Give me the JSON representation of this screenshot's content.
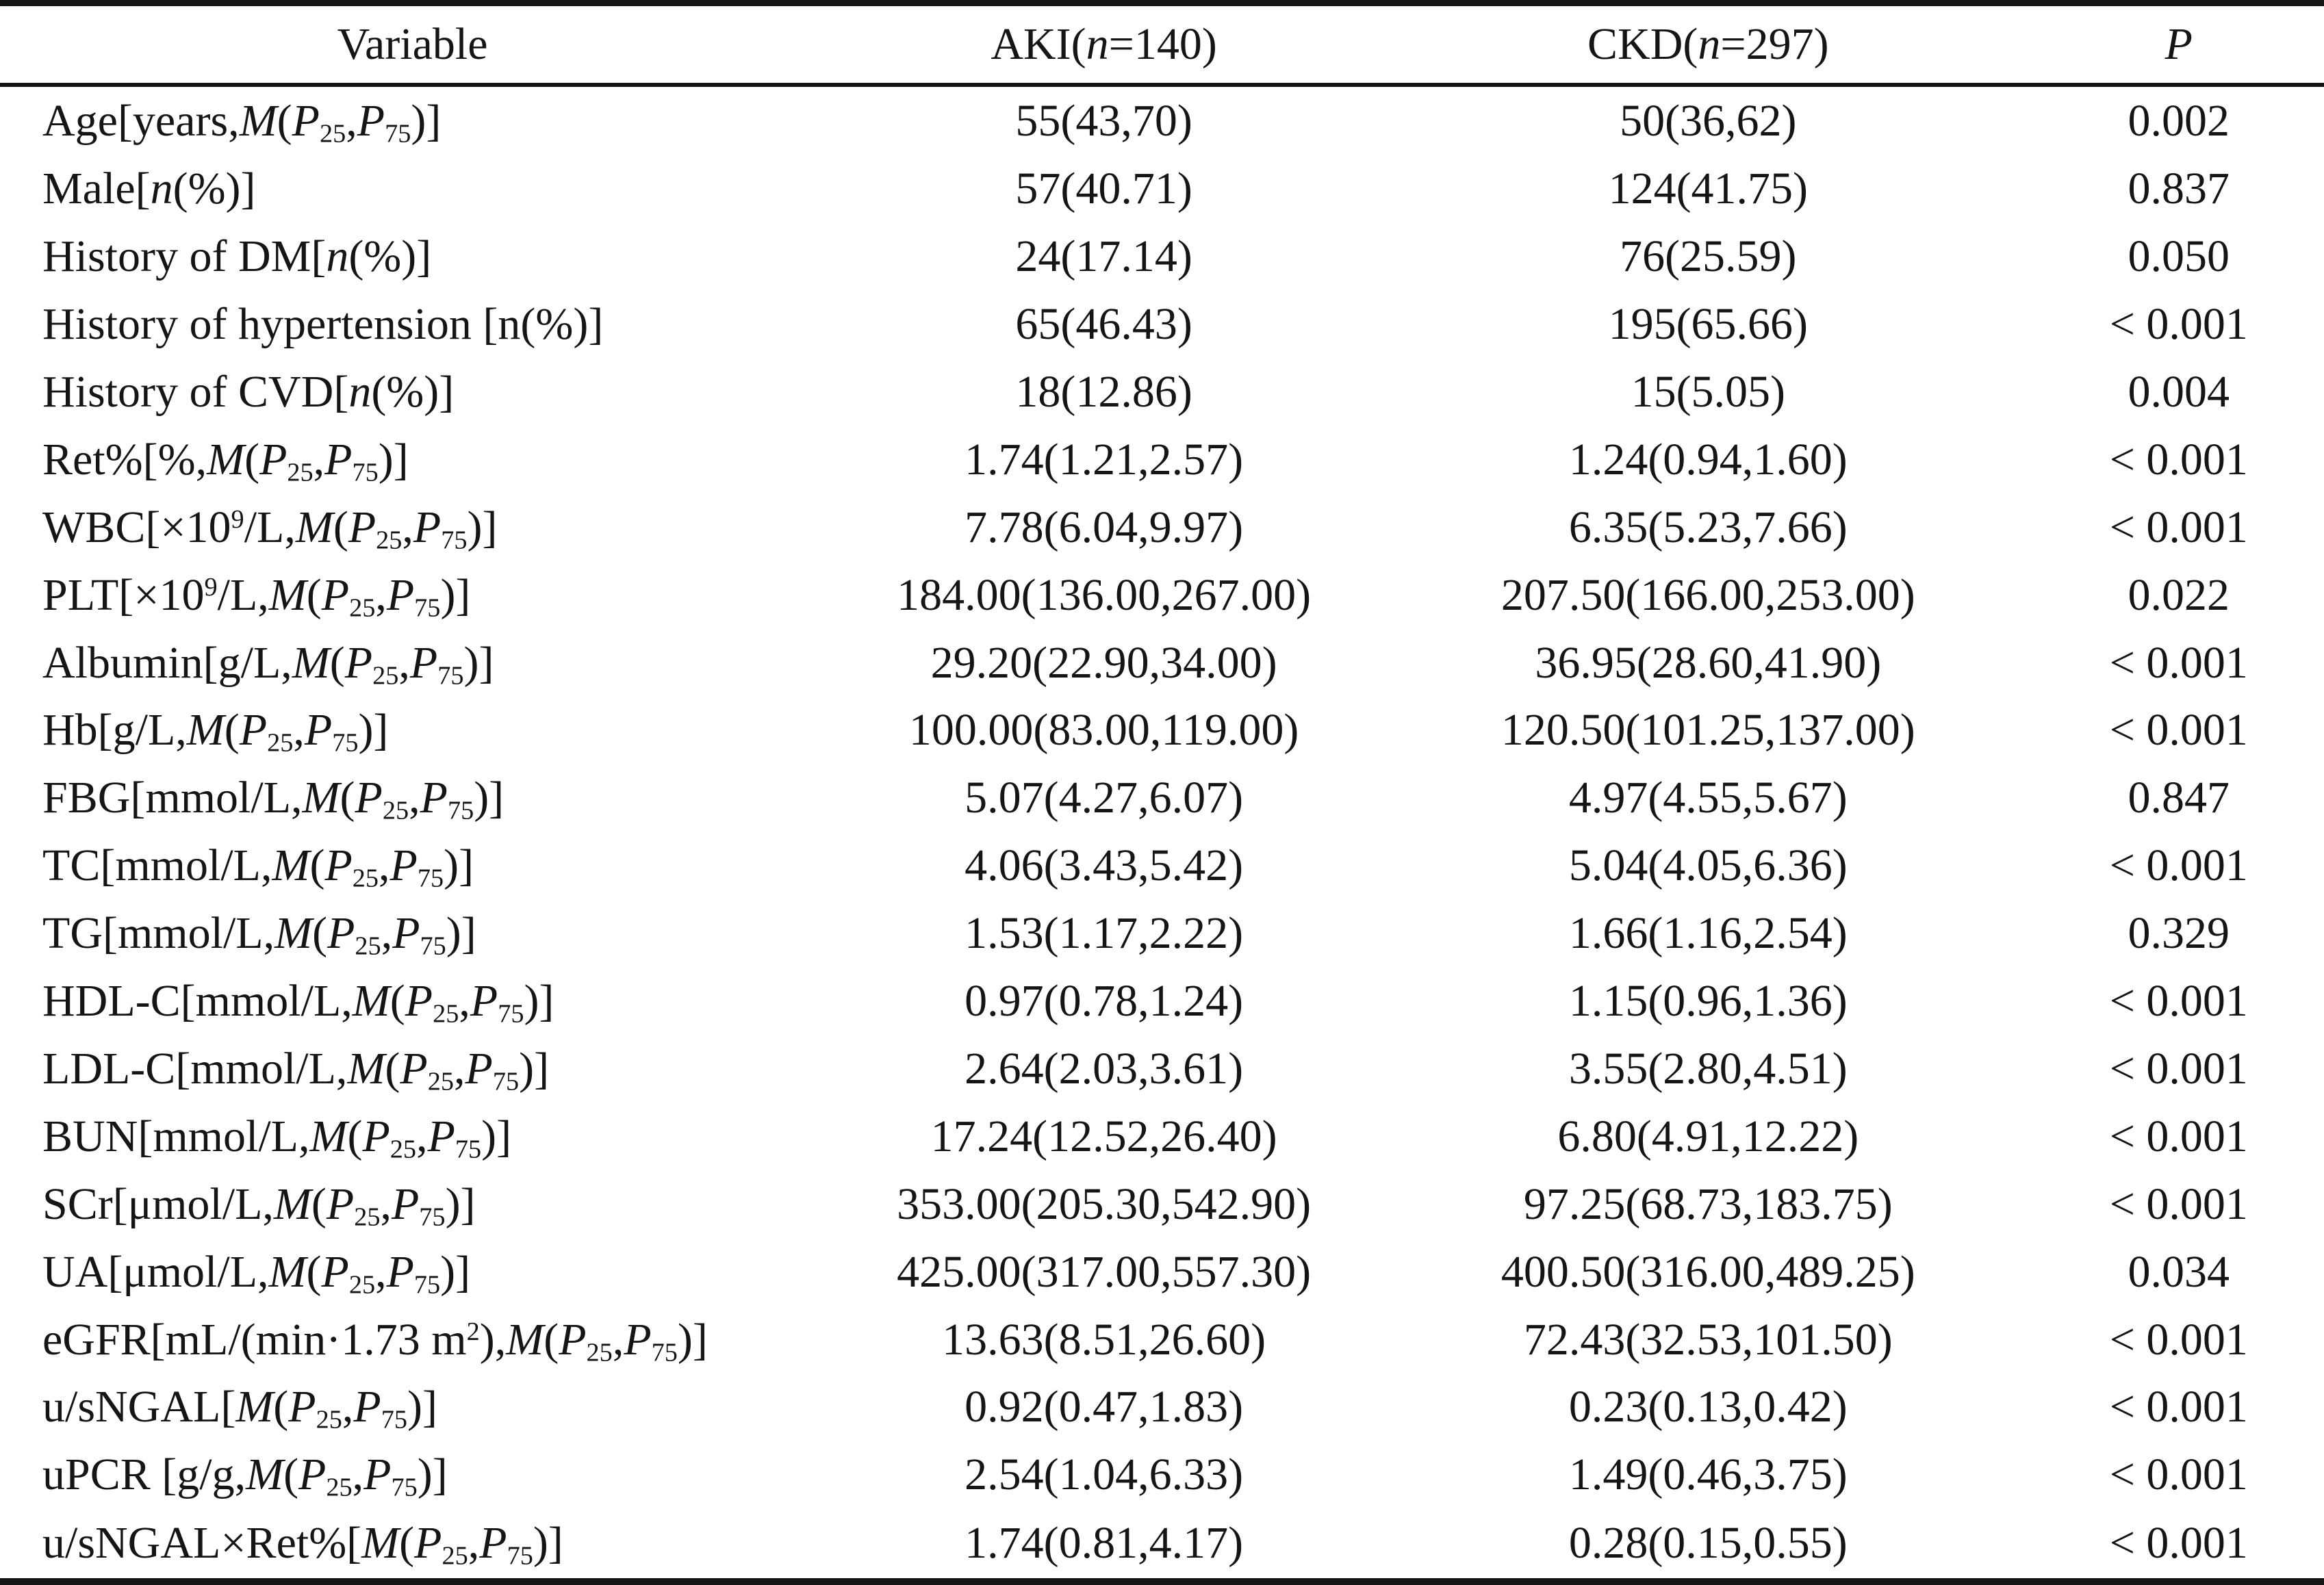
{
  "page": {
    "background": "#ffffff",
    "text_color": "#151515",
    "rule_color": "#161616"
  },
  "table": {
    "headers": [
      "Variable",
      "AKI(*n*=140)",
      "CKD(*n*=297)",
      "*P*"
    ],
    "rows": [
      {
        "variable": "Age[years,*M*(*P*~25~,*P*~75~)]",
        "aki": "55(43,70)",
        "ckd": "50(36,62)",
        "p": "0.002"
      },
      {
        "variable": "Male[*n*(%)]",
        "aki": "57(40.71)",
        "ckd": "124(41.75)",
        "p": "0.837"
      },
      {
        "variable": "History of DM[*n*(%)]",
        "aki": "24(17.14)",
        "ckd": "76(25.59)",
        "p": "0.050"
      },
      {
        "variable": "History of hypertension [n(%)]",
        "aki": "65(46.43)",
        "ckd": "195(65.66)",
        "p": "< 0.001"
      },
      {
        "variable": "History of CVD[*n*(%)]",
        "aki": "18(12.86)",
        "ckd": "15(5.05)",
        "p": "0.004"
      },
      {
        "variable": "Ret%[%,*M*(*P*~25~,*P*~75~)]",
        "aki": "1.74(1.21,2.57)",
        "ckd": "1.24(0.94,1.60)",
        "p": "< 0.001"
      },
      {
        "variable": "WBC[×10^9^/L,*M*(*P*~25~,*P*~75~)]",
        "aki": "7.78(6.04,9.97)",
        "ckd": "6.35(5.23,7.66)",
        "p": "< 0.001"
      },
      {
        "variable": "PLT[×10^9^/L,*M*(*P*~25~,*P*~75~)]",
        "aki": "184.00(136.00,267.00)",
        "ckd": "207.50(166.00,253.00)",
        "p": "0.022"
      },
      {
        "variable": "Albumin[g/L,*M*(*P*~25~,*P*~75~)]",
        "aki": "29.20(22.90,34.00)",
        "ckd": "36.95(28.60,41.90)",
        "p": "< 0.001"
      },
      {
        "variable": "Hb[g/L,*M*(*P*~25~,*P*~75~)]",
        "aki": "100.00(83.00,119.00)",
        "ckd": "120.50(101.25,137.00)",
        "p": "< 0.001"
      },
      {
        "variable": "FBG[mmol/L,*M*(*P*~25~,*P*~75~)]",
        "aki": "5.07(4.27,6.07)",
        "ckd": "4.97(4.55,5.67)",
        "p": "0.847"
      },
      {
        "variable": "TC[mmol/L,*M*(*P*~25~,*P*~75~)]",
        "aki": "4.06(3.43,5.42)",
        "ckd": "5.04(4.05,6.36)",
        "p": "< 0.001"
      },
      {
        "variable": "TG[mmol/L,*M*(*P*~25~,*P*~75~)]",
        "aki": "1.53(1.17,2.22)",
        "ckd": "1.66(1.16,2.54)",
        "p": "0.329"
      },
      {
        "variable": "HDL-C[mmol/L,*M*(*P*~25~,*P*~75~)]",
        "aki": "0.97(0.78,1.24)",
        "ckd": "1.15(0.96,1.36)",
        "p": "< 0.001"
      },
      {
        "variable": "LDL-C[mmol/L,*M*(*P*~25~,*P*~75~)]",
        "aki": "2.64(2.03,3.61)",
        "ckd": "3.55(2.80,4.51)",
        "p": "< 0.001"
      },
      {
        "variable": "BUN[mmol/L,*M*(*P*~25~,*P*~75~)]",
        "aki": "17.24(12.52,26.40)",
        "ckd": "6.80(4.91,12.22)",
        "p": "< 0.001"
      },
      {
        "variable": "SCr[μmol/L,*M*(*P*~25~,*P*~75~)]",
        "aki": "353.00(205.30,542.90)",
        "ckd": "97.25(68.73,183.75)",
        "p": "< 0.001"
      },
      {
        "variable": "UA[μmol/L,*M*(*P*~25~,*P*~75~)]",
        "aki": "425.00(317.00,557.30)",
        "ckd": "400.50(316.00,489.25)",
        "p": "0.034"
      },
      {
        "variable": "eGFR[mL/(min·1.73 m^2^),*M*(*P*~25~,*P*~75~)]",
        "aki": "13.63(8.51,26.60)",
        "ckd": "72.43(32.53,101.50)",
        "p": "< 0.001"
      },
      {
        "variable": "u/sNGAL[*M*(*P*~25~,*P*~75~)]",
        "aki": "0.92(0.47,1.83)",
        "ckd": "0.23(0.13,0.42)",
        "p": "< 0.001"
      },
      {
        "variable": "uPCR [g/g,*M*(*P*~25~,*P*~75~)]",
        "aki": "2.54(1.04,6.33)",
        "ckd": "1.49(0.46,3.75)",
        "p": "< 0.001"
      },
      {
        "variable": "u/sNGAL×Ret%[*M*(*P*~25~,*P*~75~)]",
        "aki": "1.74(0.81,4.17)",
        "ckd": "0.28(0.15,0.55)",
        "p": "< 0.001"
      }
    ]
  }
}
